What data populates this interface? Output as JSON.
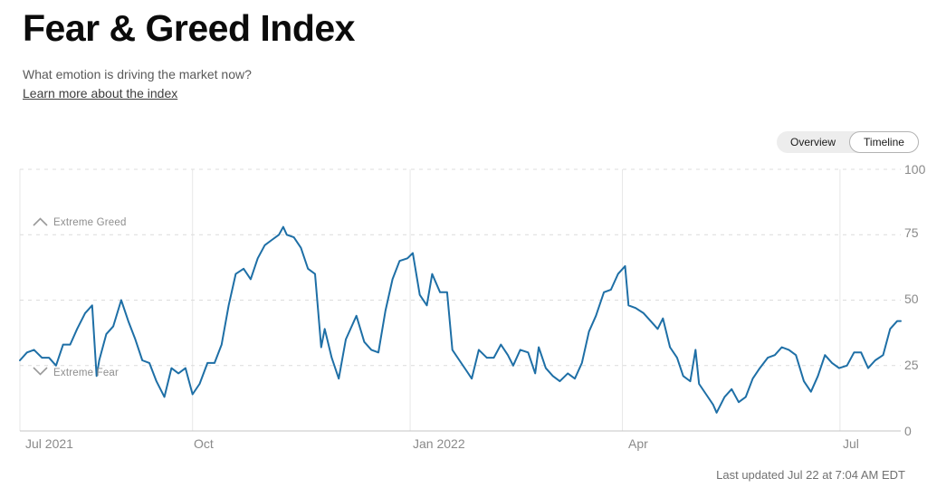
{
  "page": {
    "title": "Fear & Greed Index",
    "subtitle": "What emotion is driving the market now?",
    "learn_more_link": "Learn more about the index",
    "last_updated": "Last updated Jul 22 at 7:04 AM EDT"
  },
  "toggle": {
    "options": [
      {
        "label": "Overview",
        "selected": false
      },
      {
        "label": "Timeline",
        "selected": true
      }
    ]
  },
  "chart_data": {
    "type": "line",
    "title": "Fear & Greed Index timeline",
    "series_name": "Fear & Greed Index",
    "line_color": "#1e6fa6",
    "grid": true,
    "ylim": [
      0,
      100
    ],
    "yticks": [
      0,
      25,
      50,
      75,
      100
    ],
    "yaxis_side": "right",
    "xticks": [
      {
        "label": "Jul 2021",
        "pos": 0.0
      },
      {
        "label": "Oct",
        "pos": 0.196
      },
      {
        "label": "Jan 2022",
        "pos": 0.443
      },
      {
        "label": "Apr",
        "pos": 0.684
      },
      {
        "label": "Jul",
        "pos": 0.931
      }
    ],
    "annotations": [
      {
        "label": "Extreme Greed",
        "icon": "chevron-up",
        "value": 75,
        "position": "above"
      },
      {
        "label": "Extreme Fear",
        "icon": "chevron-down",
        "value": 25,
        "position": "below"
      }
    ],
    "points": [
      [
        0.0,
        27
      ],
      [
        0.008,
        30
      ],
      [
        0.016,
        31
      ],
      [
        0.025,
        28
      ],
      [
        0.033,
        28
      ],
      [
        0.041,
        25
      ],
      [
        0.049,
        33
      ],
      [
        0.057,
        33
      ],
      [
        0.065,
        39
      ],
      [
        0.074,
        45
      ],
      [
        0.082,
        48
      ],
      [
        0.087,
        21
      ],
      [
        0.09,
        27
      ],
      [
        0.098,
        37
      ],
      [
        0.106,
        40
      ],
      [
        0.115,
        50
      ],
      [
        0.123,
        42
      ],
      [
        0.131,
        35
      ],
      [
        0.139,
        27
      ],
      [
        0.147,
        26
      ],
      [
        0.155,
        19
      ],
      [
        0.164,
        13
      ],
      [
        0.172,
        24
      ],
      [
        0.18,
        22
      ],
      [
        0.188,
        24
      ],
      [
        0.196,
        14
      ],
      [
        0.204,
        18
      ],
      [
        0.213,
        26
      ],
      [
        0.221,
        26
      ],
      [
        0.229,
        33
      ],
      [
        0.237,
        48
      ],
      [
        0.245,
        60
      ],
      [
        0.254,
        62
      ],
      [
        0.262,
        58
      ],
      [
        0.27,
        66
      ],
      [
        0.278,
        71
      ],
      [
        0.286,
        73
      ],
      [
        0.294,
        75
      ],
      [
        0.299,
        78
      ],
      [
        0.303,
        75
      ],
      [
        0.311,
        74
      ],
      [
        0.319,
        70
      ],
      [
        0.327,
        62
      ],
      [
        0.335,
        60
      ],
      [
        0.342,
        32
      ],
      [
        0.346,
        39
      ],
      [
        0.354,
        28
      ],
      [
        0.362,
        20
      ],
      [
        0.37,
        35
      ],
      [
        0.378,
        41
      ],
      [
        0.382,
        44
      ],
      [
        0.391,
        34
      ],
      [
        0.399,
        31
      ],
      [
        0.407,
        30
      ],
      [
        0.415,
        46
      ],
      [
        0.423,
        58
      ],
      [
        0.431,
        65
      ],
      [
        0.44,
        66
      ],
      [
        0.446,
        68
      ],
      [
        0.454,
        52
      ],
      [
        0.462,
        48
      ],
      [
        0.468,
        60
      ],
      [
        0.477,
        53
      ],
      [
        0.485,
        53
      ],
      [
        0.491,
        31
      ],
      [
        0.499,
        27
      ],
      [
        0.507,
        23
      ],
      [
        0.513,
        20
      ],
      [
        0.521,
        31
      ],
      [
        0.53,
        28
      ],
      [
        0.538,
        28
      ],
      [
        0.546,
        33
      ],
      [
        0.554,
        29
      ],
      [
        0.56,
        25
      ],
      [
        0.568,
        31
      ],
      [
        0.577,
        30
      ],
      [
        0.585,
        22
      ],
      [
        0.589,
        32
      ],
      [
        0.597,
        24
      ],
      [
        0.605,
        21
      ],
      [
        0.613,
        19
      ],
      [
        0.622,
        22
      ],
      [
        0.63,
        20
      ],
      [
        0.638,
        26
      ],
      [
        0.646,
        38
      ],
      [
        0.654,
        44
      ],
      [
        0.663,
        53
      ],
      [
        0.671,
        54
      ],
      [
        0.679,
        60
      ],
      [
        0.687,
        63
      ],
      [
        0.691,
        48
      ],
      [
        0.699,
        47
      ],
      [
        0.708,
        45
      ],
      [
        0.716,
        42
      ],
      [
        0.724,
        39
      ],
      [
        0.73,
        43
      ],
      [
        0.738,
        32
      ],
      [
        0.746,
        28
      ],
      [
        0.753,
        21
      ],
      [
        0.761,
        19
      ],
      [
        0.767,
        31
      ],
      [
        0.771,
        18
      ],
      [
        0.779,
        14
      ],
      [
        0.787,
        10
      ],
      [
        0.791,
        7
      ],
      [
        0.8,
        13
      ],
      [
        0.808,
        16
      ],
      [
        0.816,
        11
      ],
      [
        0.824,
        13
      ],
      [
        0.832,
        20
      ],
      [
        0.84,
        24
      ],
      [
        0.849,
        28
      ],
      [
        0.857,
        29
      ],
      [
        0.865,
        32
      ],
      [
        0.873,
        31
      ],
      [
        0.881,
        29
      ],
      [
        0.89,
        19
      ],
      [
        0.898,
        15
      ],
      [
        0.906,
        21
      ],
      [
        0.914,
        29
      ],
      [
        0.922,
        26
      ],
      [
        0.93,
        24
      ],
      [
        0.939,
        25
      ],
      [
        0.947,
        30
      ],
      [
        0.955,
        30
      ],
      [
        0.963,
        24
      ],
      [
        0.971,
        27
      ],
      [
        0.98,
        29
      ],
      [
        0.988,
        39
      ],
      [
        0.996,
        42
      ],
      [
        1.0,
        42
      ]
    ]
  }
}
